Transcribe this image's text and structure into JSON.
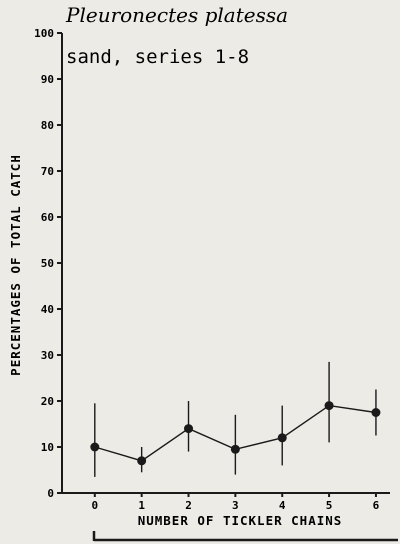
{
  "chart_data": {
    "type": "line",
    "title": "Pleuronectes platessa",
    "subtitle": "sand, series 1-8",
    "xlabel": "NUMBER OF TICKLER CHAINS",
    "ylabel": "PERCENTAGES OF TOTAL CATCH",
    "xlim": [
      -0.7,
      6.3
    ],
    "ylim": [
      0,
      100
    ],
    "x_ticks": [
      "0",
      "1",
      "2",
      "3",
      "4",
      "5",
      "6"
    ],
    "y_ticks": [
      "0",
      "10",
      "20",
      "30",
      "40",
      "50",
      "60",
      "70",
      "80",
      "90",
      "100"
    ],
    "grid": false,
    "series": [
      {
        "x": [
          0,
          1,
          2,
          3,
          4,
          5,
          6
        ],
        "y": [
          10,
          7,
          14,
          9.5,
          12,
          19,
          17.5
        ],
        "error_low": [
          3.5,
          4.5,
          9,
          4,
          6,
          11,
          12.5
        ],
        "error_high": [
          19.5,
          10,
          20,
          17,
          19,
          28.5,
          22.5
        ]
      }
    ]
  }
}
